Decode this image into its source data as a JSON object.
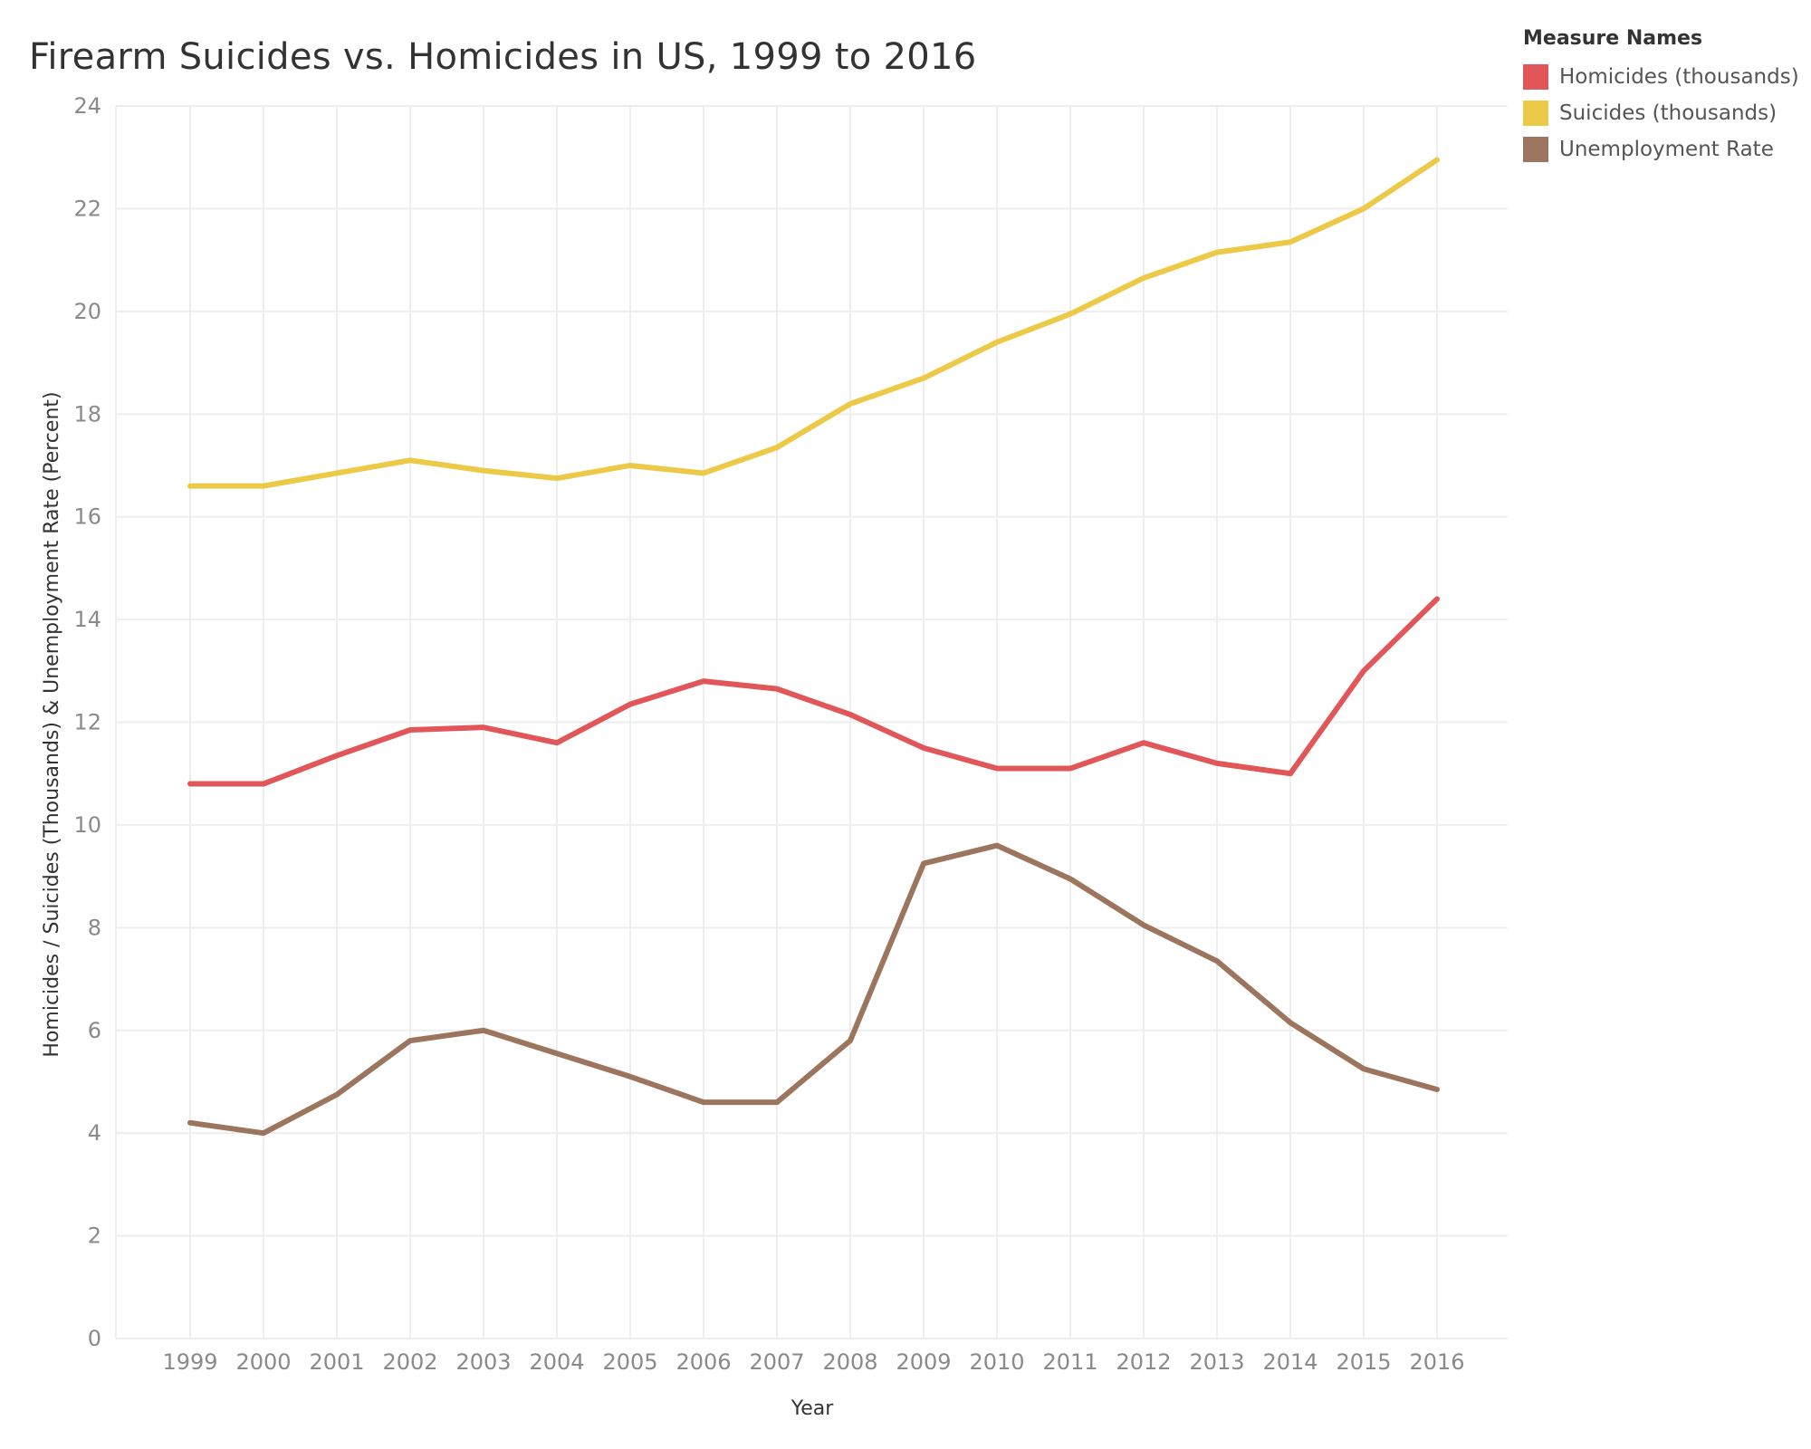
{
  "chart_data": {
    "type": "line",
    "title": "Firearm Suicides vs. Homicides in US, 1999 to 2016",
    "xlabel": "Year",
    "ylabel": "Homicides / Suicides (Thousands) & Unemployment Rate (Percent)",
    "x": [
      "1999",
      "2000",
      "2001",
      "2002",
      "2003",
      "2004",
      "2005",
      "2006",
      "2007",
      "2008",
      "2009",
      "2010",
      "2011",
      "2012",
      "2013",
      "2014",
      "2015",
      "2016"
    ],
    "ylim": [
      0,
      24
    ],
    "yticks": [
      0,
      2,
      4,
      6,
      8,
      10,
      12,
      14,
      16,
      18,
      20,
      22,
      24
    ],
    "grid": true,
    "legend_title": "Measure Names",
    "legend_position": "top-right",
    "series": [
      {
        "name": "Homicides (thousands)",
        "color": "#e15759",
        "values": [
          10.8,
          10.8,
          11.35,
          11.85,
          11.9,
          11.6,
          12.35,
          12.8,
          12.65,
          12.15,
          11.5,
          11.1,
          11.1,
          11.6,
          11.2,
          11.0,
          13.0,
          14.4
        ]
      },
      {
        "name": "Suicides (thousands)",
        "color": "#edc948",
        "values": [
          16.6,
          16.6,
          16.85,
          17.1,
          16.9,
          16.75,
          17.0,
          16.85,
          17.35,
          18.2,
          18.7,
          19.4,
          19.95,
          20.65,
          21.15,
          21.35,
          22.0,
          22.95
        ]
      },
      {
        "name": "Unemployment Rate",
        "color": "#9c755f",
        "values": [
          4.2,
          4.0,
          4.75,
          5.8,
          6.0,
          5.55,
          5.1,
          4.6,
          4.6,
          5.8,
          9.25,
          9.6,
          8.95,
          8.05,
          7.35,
          6.15,
          5.25,
          4.85
        ]
      }
    ]
  }
}
